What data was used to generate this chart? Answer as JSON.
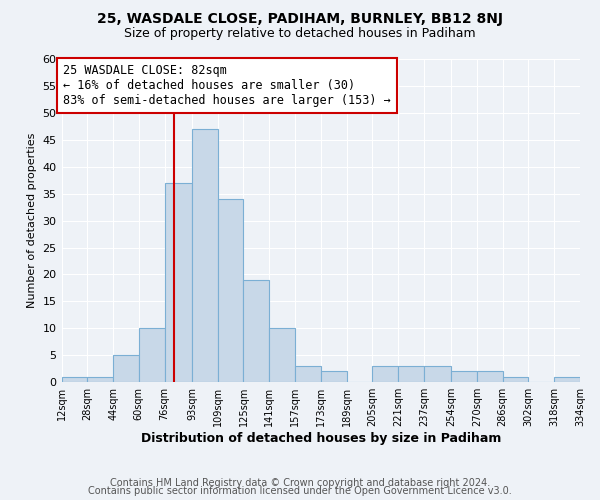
{
  "title": "25, WASDALE CLOSE, PADIHAM, BURNLEY, BB12 8NJ",
  "subtitle": "Size of property relative to detached houses in Padiham",
  "xlabel": "Distribution of detached houses by size in Padiham",
  "ylabel": "Number of detached properties",
  "bin_edges": [
    12,
    28,
    44,
    60,
    76,
    93,
    109,
    125,
    141,
    157,
    173,
    189,
    205,
    221,
    237,
    254,
    270,
    286,
    302,
    318,
    334
  ],
  "bin_counts": [
    1,
    1,
    5,
    10,
    37,
    47,
    34,
    19,
    10,
    3,
    2,
    0,
    3,
    3,
    3,
    2,
    2,
    1,
    0,
    1
  ],
  "bar_color": "#c8d8e8",
  "bar_edge_color": "#7bafd4",
  "bar_linewidth": 0.8,
  "vline_x": 82,
  "vline_color": "#cc0000",
  "annotation_text": "25 WASDALE CLOSE: 82sqm\n← 16% of detached houses are smaller (30)\n83% of semi-detached houses are larger (153) →",
  "annotation_box_color": "white",
  "annotation_box_edgecolor": "#cc0000",
  "annotation_fontsize": 8.5,
  "tick_labels": [
    "12sqm",
    "28sqm",
    "44sqm",
    "60sqm",
    "76sqm",
    "93sqm",
    "109sqm",
    "125sqm",
    "141sqm",
    "157sqm",
    "173sqm",
    "189sqm",
    "205sqm",
    "221sqm",
    "237sqm",
    "254sqm",
    "270sqm",
    "286sqm",
    "302sqm",
    "318sqm",
    "334sqm"
  ],
  "ylim": [
    0,
    60
  ],
  "yticks": [
    0,
    5,
    10,
    15,
    20,
    25,
    30,
    35,
    40,
    45,
    50,
    55,
    60
  ],
  "background_color": "#eef2f7",
  "grid_color": "white",
  "footer_line1": "Contains HM Land Registry data © Crown copyright and database right 2024.",
  "footer_line2": "Contains public sector information licensed under the Open Government Licence v3.0.",
  "title_fontsize": 10,
  "subtitle_fontsize": 9,
  "xlabel_fontsize": 9,
  "ylabel_fontsize": 8,
  "footer_fontsize": 7,
  "tick_fontsize": 7
}
